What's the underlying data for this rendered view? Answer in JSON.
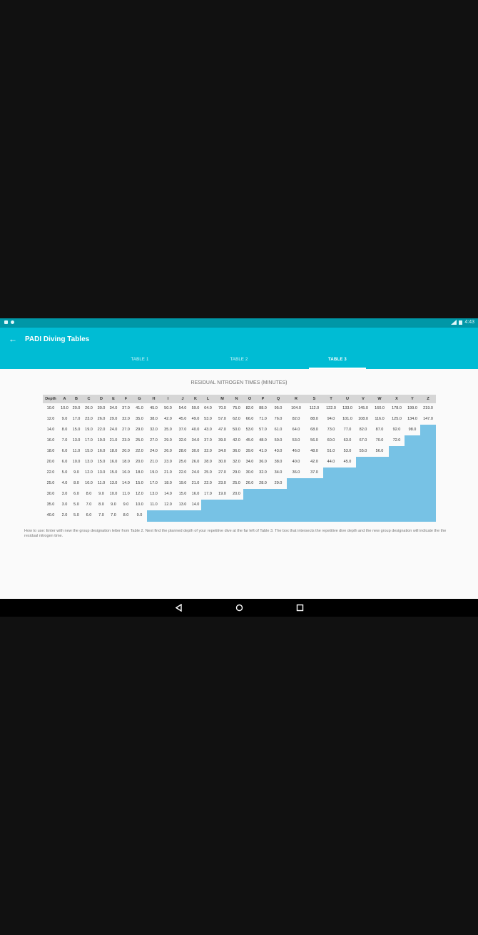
{
  "status_bar": {
    "time": "4:43"
  },
  "app_bar": {
    "title": "PADI Diving Tables"
  },
  "tabs": [
    {
      "label": "TABLE 1",
      "active": false
    },
    {
      "label": "TABLE 2",
      "active": false
    },
    {
      "label": "TABLE 3",
      "active": true
    }
  ],
  "table": {
    "title": "RESIDUAL NITROGEN TIMES (MINUTES)",
    "corner_label": "Depth",
    "columns": [
      "A",
      "B",
      "C",
      "D",
      "E",
      "F",
      "G",
      "H",
      "I",
      "J",
      "K",
      "L",
      "M",
      "N",
      "O",
      "P",
      "Q",
      "R",
      "S",
      "T",
      "U",
      "V",
      "W",
      "X",
      "Y",
      "Z"
    ],
    "rows": [
      {
        "depth": "10.0",
        "values": [
          "10.0",
          "20.0",
          "26.0",
          "30.0",
          "34.0",
          "37.0",
          "41.0",
          "45.0",
          "50.0",
          "54.0",
          "59.0",
          "64.0",
          "70.0",
          "75.0",
          "82.0",
          "88.0",
          "95.0",
          "104.0",
          "112.0",
          "122.0",
          "133.0",
          "145.0",
          "160.0",
          "178.0",
          "199.0",
          "219.0"
        ]
      },
      {
        "depth": "12.0",
        "values": [
          "9.0",
          "17.0",
          "23.0",
          "26.0",
          "29.0",
          "32.0",
          "35.0",
          "38.0",
          "42.0",
          "45.0",
          "49.0",
          "53.0",
          "57.0",
          "62.0",
          "66.0",
          "71.0",
          "76.0",
          "82.0",
          "88.0",
          "94.0",
          "101.0",
          "108.0",
          "116.0",
          "125.0",
          "134.0",
          "147.0"
        ]
      },
      {
        "depth": "14.0",
        "values": [
          "8.0",
          "15.0",
          "19.0",
          "22.0",
          "24.0",
          "27.0",
          "29.0",
          "32.0",
          "35.0",
          "37.0",
          "40.0",
          "43.0",
          "47.0",
          "50.0",
          "53.0",
          "57.0",
          "61.0",
          "64.0",
          "68.0",
          "73.0",
          "77.0",
          "82.0",
          "87.0",
          "92.0",
          "98.0"
        ]
      },
      {
        "depth": "16.0",
        "values": [
          "7.0",
          "13.0",
          "17.0",
          "19.0",
          "21.0",
          "23.0",
          "25.0",
          "27.0",
          "29.0",
          "32.0",
          "34.0",
          "37.0",
          "39.0",
          "42.0",
          "45.0",
          "48.0",
          "50.0",
          "53.0",
          "56.0",
          "60.0",
          "63.0",
          "67.0",
          "70.0",
          "72.0"
        ]
      },
      {
        "depth": "18.0",
        "values": [
          "6.0",
          "11.0",
          "15.0",
          "16.0",
          "18.0",
          "20.0",
          "22.0",
          "24.0",
          "26.0",
          "28.0",
          "30.0",
          "32.0",
          "34.0",
          "36.0",
          "39.0",
          "41.0",
          "43.0",
          "46.0",
          "48.0",
          "51.0",
          "53.0",
          "55.0",
          "56.0"
        ]
      },
      {
        "depth": "20.0",
        "values": [
          "6.0",
          "10.0",
          "13.0",
          "15.0",
          "16.0",
          "18.0",
          "20.0",
          "21.0",
          "23.0",
          "25.0",
          "26.0",
          "28.0",
          "30.0",
          "32.0",
          "34.0",
          "36.0",
          "38.0",
          "40.0",
          "42.0",
          "44.0",
          "45.0"
        ]
      },
      {
        "depth": "22.0",
        "values": [
          "5.0",
          "9.0",
          "12.0",
          "13.0",
          "15.0",
          "16.0",
          "18.0",
          "19.0",
          "21.0",
          "22.0",
          "24.0",
          "25.0",
          "27.0",
          "29.0",
          "30.0",
          "32.0",
          "34.0",
          "36.0",
          "37.0"
        ]
      },
      {
        "depth": "25.0",
        "values": [
          "4.0",
          "8.0",
          "10.0",
          "11.0",
          "13.0",
          "14.0",
          "15.0",
          "17.0",
          "18.0",
          "19.0",
          "21.0",
          "22.0",
          "23.0",
          "25.0",
          "26.0",
          "28.0",
          "29.0"
        ]
      },
      {
        "depth": "30.0",
        "values": [
          "3.0",
          "6.0",
          "8.0",
          "9.0",
          "10.0",
          "11.0",
          "12.0",
          "13.0",
          "14.0",
          "15.0",
          "16.0",
          "17.0",
          "19.0",
          "20.0"
        ]
      },
      {
        "depth": "35.0",
        "values": [
          "3.0",
          "5.0",
          "7.0",
          "8.0",
          "9.0",
          "9.0",
          "10.0",
          "11.0",
          "12.0",
          "13.0",
          "14.0"
        ]
      },
      {
        "depth": "40.0",
        "values": [
          "2.0",
          "5.0",
          "6.0",
          "7.0",
          "7.0",
          "8.0",
          "9.0"
        ]
      }
    ],
    "empty_fill_color": "#77c2e5",
    "header_color": "#d6d6d6"
  },
  "how_to_use": "How to use:  Enter with new the group designation letter from Table 2. Next find the planned depth of your repetitive dive at the far left of Table 3. The box that intersects the repetitive dive depth and the new group designation will indicate the the residual nitrogen time.",
  "nav_bar": {
    "buttons": [
      "back-nav",
      "home-nav",
      "recents-nav"
    ]
  },
  "colors": {
    "primary": "#00bcd4",
    "primary_dark": "#0097a7"
  }
}
